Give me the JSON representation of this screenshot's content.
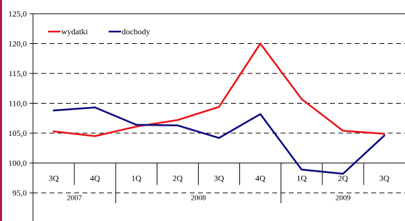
{
  "chart_data": {
    "type": "line",
    "title": "",
    "xlabel": "",
    "ylabel": "",
    "categories": [
      "3Q",
      "4Q",
      "1Q",
      "2Q",
      "3Q",
      "4Q",
      "1Q",
      "2Q",
      "3Q"
    ],
    "year_groups": [
      {
        "label": "2007",
        "span": [
          0,
          1
        ]
      },
      {
        "label": "2008",
        "span": [
          2,
          5
        ]
      },
      {
        "label": "2009",
        "span": [
          6,
          8
        ]
      }
    ],
    "ylim": [
      90.0,
      125.0
    ],
    "yticks": [
      {
        "value": 95.0,
        "label": "95,0"
      },
      {
        "value": 100.0,
        "label": "100,0"
      },
      {
        "value": 105.0,
        "label": "105,0"
      },
      {
        "value": 110.0,
        "label": "110,0"
      },
      {
        "value": 115.0,
        "label": "115,0"
      },
      {
        "value": 120.0,
        "label": "120,0"
      },
      {
        "value": 125.0,
        "label": "125,0"
      }
    ],
    "grid": "horizontal dashed",
    "legend_position": "top-left",
    "series": [
      {
        "name": "wydatki",
        "color": "#e8141b",
        "values": [
          105.3,
          104.5,
          106.1,
          107.2,
          109.4,
          120.0,
          110.7,
          105.4,
          104.9
        ]
      },
      {
        "name": "dochody",
        "color": "#0d0c7e",
        "values": [
          108.8,
          109.3,
          106.4,
          106.3,
          104.2,
          108.2,
          98.9,
          98.2,
          104.6
        ]
      }
    ]
  }
}
